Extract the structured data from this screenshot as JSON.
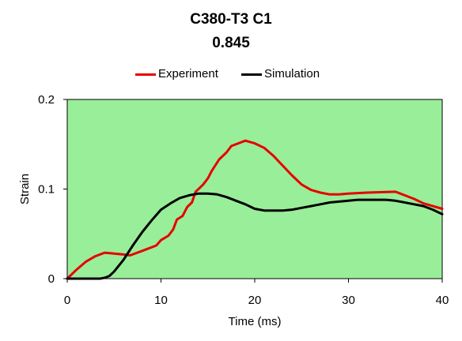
{
  "chart_data": {
    "type": "line",
    "title": "C380-T3 C1",
    "subtitle": "0.845",
    "xlabel": "Time (ms)",
    "ylabel": "Strain",
    "xlim": [
      0,
      40
    ],
    "ylim": [
      0,
      0.2
    ],
    "x_ticks": [
      "0",
      "10",
      "20",
      "30",
      "40"
    ],
    "y_ticks": [
      "0",
      "0.1",
      "0.2"
    ],
    "grid": false,
    "legend_position": "top",
    "plot_background": "#99ee99",
    "series": [
      {
        "name": "Experiment",
        "color": "#e60000",
        "points": [
          [
            0,
            0.0
          ],
          [
            1,
            0.01
          ],
          [
            2,
            0.019
          ],
          [
            3,
            0.025
          ],
          [
            4,
            0.029
          ],
          [
            5,
            0.028
          ],
          [
            6,
            0.027
          ],
          [
            6.7,
            0.026
          ],
          [
            8,
            0.031
          ],
          [
            9.5,
            0.037
          ],
          [
            10,
            0.043
          ],
          [
            10.8,
            0.048
          ],
          [
            11.3,
            0.055
          ],
          [
            11.7,
            0.066
          ],
          [
            12.3,
            0.07
          ],
          [
            12.8,
            0.08
          ],
          [
            13.3,
            0.085
          ],
          [
            13.7,
            0.097
          ],
          [
            14.5,
            0.105
          ],
          [
            15,
            0.112
          ],
          [
            15.4,
            0.12
          ],
          [
            16.2,
            0.133
          ],
          [
            17,
            0.141
          ],
          [
            17.5,
            0.148
          ],
          [
            18.5,
            0.152
          ],
          [
            19,
            0.154
          ],
          [
            20,
            0.151
          ],
          [
            21,
            0.146
          ],
          [
            22,
            0.137
          ],
          [
            23,
            0.126
          ],
          [
            24,
            0.115
          ],
          [
            25,
            0.105
          ],
          [
            26,
            0.099
          ],
          [
            27,
            0.096
          ],
          [
            28,
            0.094
          ],
          [
            29,
            0.094
          ],
          [
            30,
            0.095
          ],
          [
            32,
            0.096
          ],
          [
            35,
            0.097
          ],
          [
            36,
            0.093
          ],
          [
            37,
            0.089
          ],
          [
            38,
            0.084
          ],
          [
            40,
            0.078
          ]
        ]
      },
      {
        "name": "Simulation",
        "color": "#000000",
        "points": [
          [
            0,
            0.0
          ],
          [
            3.5,
            0.0
          ],
          [
            4,
            0.001
          ],
          [
            4.5,
            0.003
          ],
          [
            5,
            0.008
          ],
          [
            6,
            0.021
          ],
          [
            7,
            0.037
          ],
          [
            8,
            0.052
          ],
          [
            9,
            0.065
          ],
          [
            10,
            0.077
          ],
          [
            11,
            0.084
          ],
          [
            12,
            0.09
          ],
          [
            13,
            0.093
          ],
          [
            14,
            0.095
          ],
          [
            15,
            0.095
          ],
          [
            16,
            0.094
          ],
          [
            17,
            0.091
          ],
          [
            18,
            0.087
          ],
          [
            19,
            0.083
          ],
          [
            20,
            0.078
          ],
          [
            21,
            0.076
          ],
          [
            22,
            0.076
          ],
          [
            23,
            0.076
          ],
          [
            24,
            0.077
          ],
          [
            25,
            0.079
          ],
          [
            26,
            0.081
          ],
          [
            27,
            0.083
          ],
          [
            28,
            0.085
          ],
          [
            29,
            0.086
          ],
          [
            30,
            0.087
          ],
          [
            31,
            0.088
          ],
          [
            32,
            0.088
          ],
          [
            33,
            0.088
          ],
          [
            34,
            0.088
          ],
          [
            35,
            0.087
          ],
          [
            36,
            0.085
          ],
          [
            37,
            0.083
          ],
          [
            38,
            0.081
          ],
          [
            39,
            0.077
          ],
          [
            40,
            0.072
          ]
        ]
      }
    ]
  }
}
